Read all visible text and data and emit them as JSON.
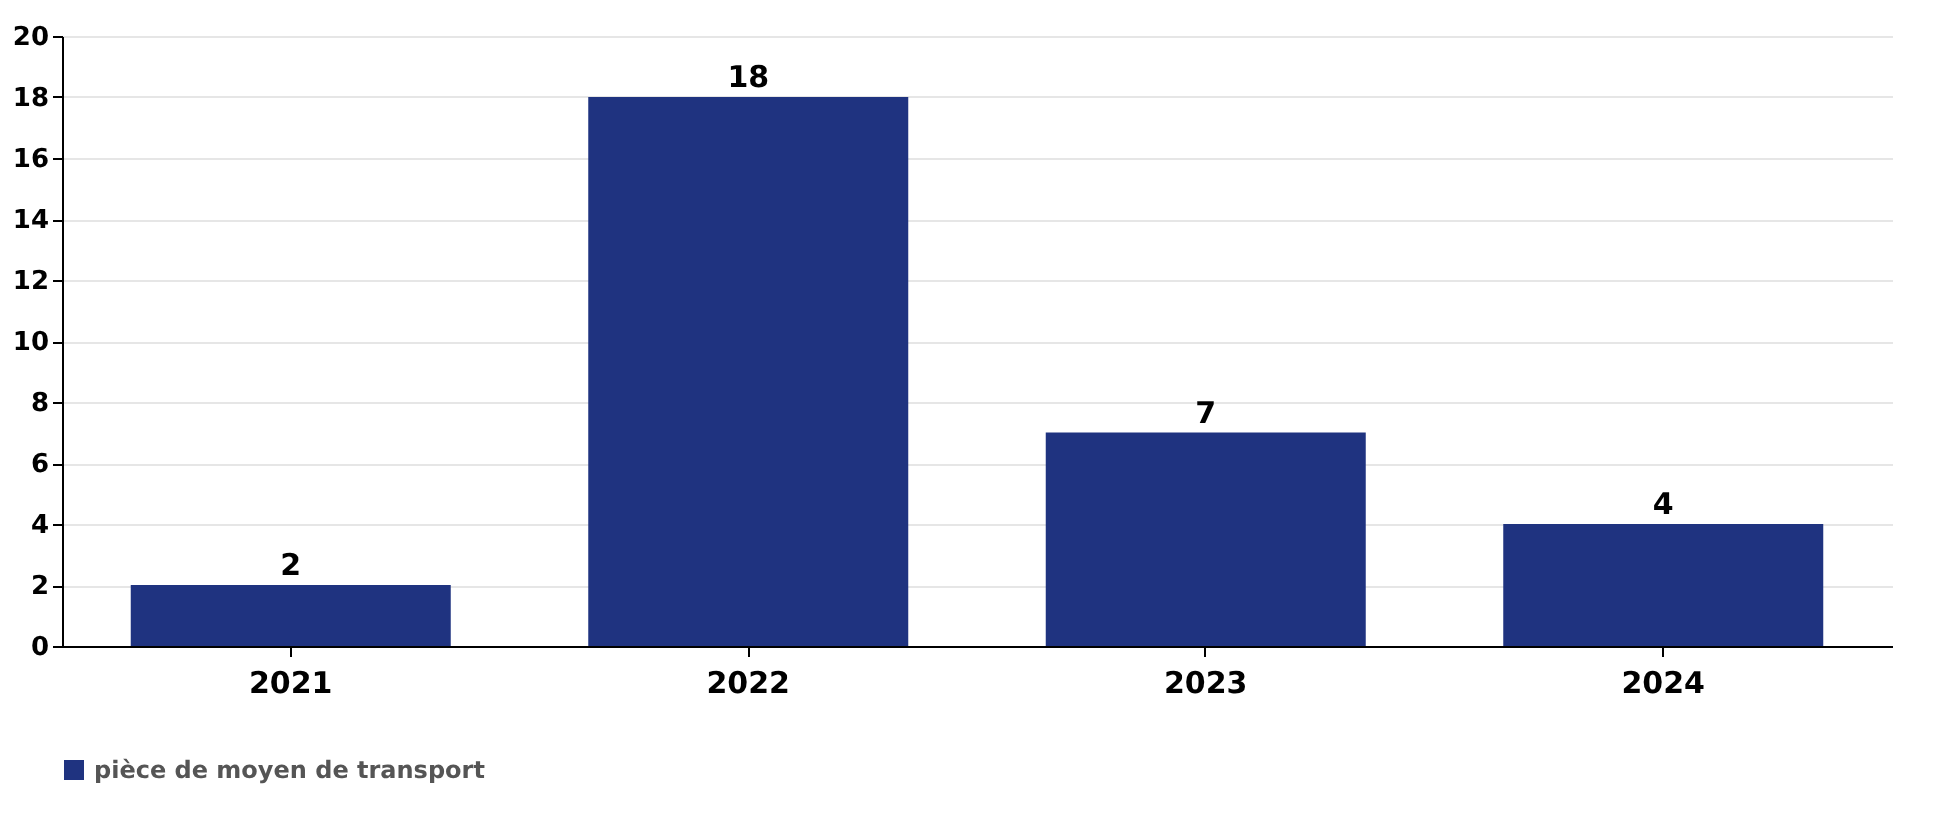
{
  "chart_data": {
    "type": "bar",
    "categories": [
      "2021",
      "2022",
      "2023",
      "2024"
    ],
    "series": [
      {
        "name": "pièce de moyen de transport",
        "color": "#1f3380",
        "values": [
          2,
          18,
          7,
          4
        ]
      }
    ],
    "ylim": [
      0,
      20
    ],
    "yticks": [
      0,
      2,
      4,
      6,
      8,
      10,
      12,
      14,
      16,
      18,
      20
    ],
    "grid": "y",
    "legend": "bottom",
    "data_labels": true
  }
}
